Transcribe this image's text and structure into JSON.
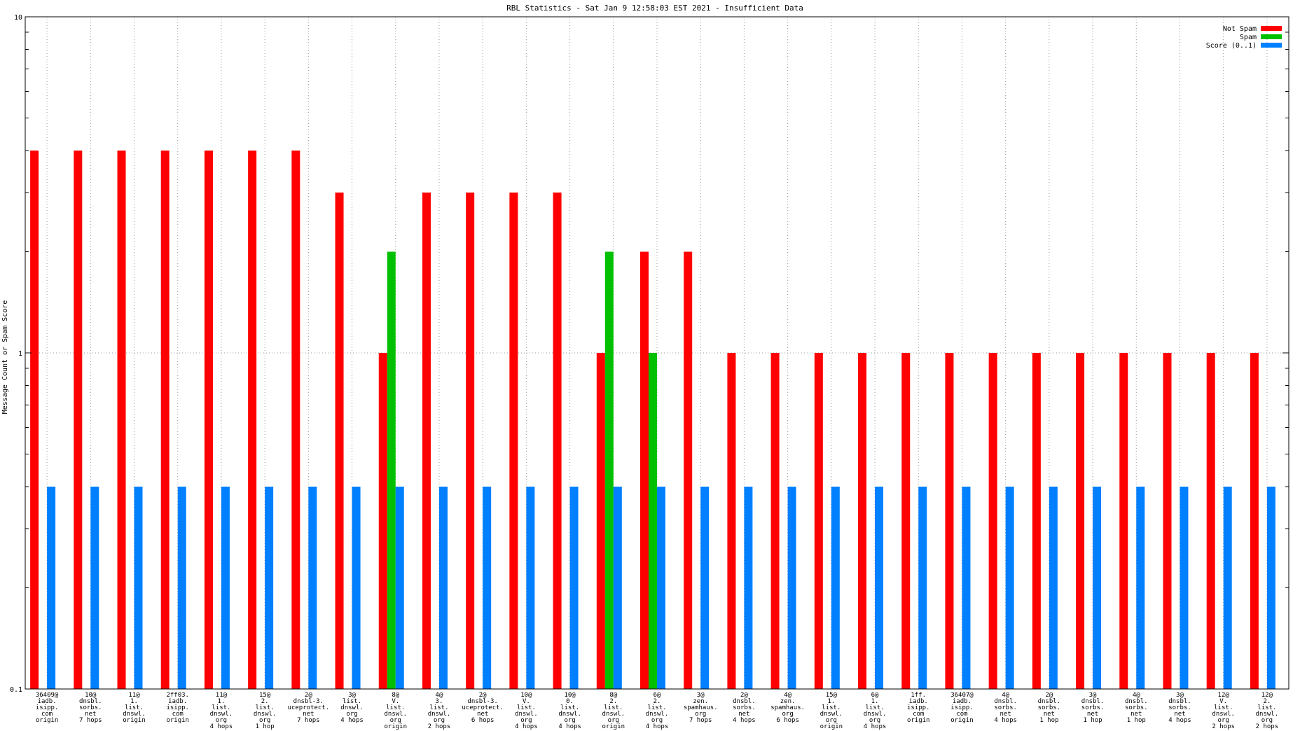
{
  "chart_data": {
    "type": "bar",
    "title": "RBL Statistics - Sat Jan  9 12:58:03 EST 2021 - Insufficient Data",
    "xlabel": "",
    "ylabel": "Message Count or Spam Score",
    "y_scale": "log",
    "ylim": [
      0.1,
      10
    ],
    "y_ticks": [
      "0.1",
      "1",
      "10"
    ],
    "grid": true,
    "legend_position": "top-right",
    "categories": [
      [
        "36409@",
        "iadb.",
        "isipp.",
        "com",
        "origin"
      ],
      [
        "10@",
        "dnsbl.",
        "sorbs.",
        "net",
        "7 hops"
      ],
      [
        "11@",
        "1.",
        "list.",
        "dnswl.",
        "origin"
      ],
      [
        "2ff03.",
        "iadb.",
        "isipp.",
        "com",
        "origin"
      ],
      [
        "11@",
        "1.",
        "list.",
        "dnswl.",
        "org",
        "4 hops"
      ],
      [
        "15@",
        "2.",
        "list.",
        "dnswl.",
        "org",
        "1 hop"
      ],
      [
        "2@",
        "dnsbl-3.",
        "uceprotect.",
        "net",
        "7 hops"
      ],
      [
        "3@",
        "list.",
        "dnswl.",
        "org",
        "4 hops"
      ],
      [
        "8@",
        "V.",
        "list.",
        "dnswl.",
        "org",
        "origin"
      ],
      [
        "4@",
        "3.",
        "list.",
        "dnswl.",
        "org",
        "2 hops"
      ],
      [
        "2@",
        "dnsbl-3.",
        "uceprotect.",
        "net",
        "6 hops"
      ],
      [
        "10@",
        "V.",
        "list.",
        "dnswl.",
        "org",
        "4 hops"
      ],
      [
        "10@",
        "0.",
        "list.",
        "dnswl.",
        "org",
        "4 hops"
      ],
      [
        "8@",
        "2.",
        "list.",
        "dnswl.",
        "org",
        "origin"
      ],
      [
        "6@",
        "2.",
        "list.",
        "dnswl.",
        "org",
        "4 hops"
      ],
      [
        "3@",
        "zen.",
        "spamhaus.",
        "org",
        "7 hops"
      ],
      [
        "2@",
        "dnsbl.",
        "sorbs.",
        "net",
        "4 hops"
      ],
      [
        "4@",
        "zen.",
        "spamhaus.",
        "org",
        "6 hops"
      ],
      [
        "15@",
        "1.",
        "list.",
        "dnswl.",
        "org",
        "origin"
      ],
      [
        "6@",
        "1.",
        "list.",
        "dnswl.",
        "org",
        "4 hops"
      ],
      [
        "1ff.",
        "iadb.",
        "isipp.",
        "com",
        "origin"
      ],
      [
        "36407@",
        "iadb.",
        "isipp.",
        "com",
        "origin"
      ],
      [
        "4@",
        "dnsbl.",
        "sorbs.",
        "net",
        "4 hops"
      ],
      [
        "2@",
        "dnsbl.",
        "sorbs.",
        "net",
        "1 hop"
      ],
      [
        "3@",
        "dnsbl.",
        "sorbs.",
        "net",
        "1 hop"
      ],
      [
        "4@",
        "dnsbl.",
        "sorbs.",
        "net",
        "1 hop"
      ],
      [
        "3@",
        "dnsbl.",
        "sorbs.",
        "net",
        "4 hops"
      ],
      [
        "12@",
        "V.",
        "list.",
        "dnswl.",
        "org",
        "2 hops"
      ],
      [
        "12@",
        "2.",
        "list.",
        "dnswl.",
        "org",
        "2 hops"
      ]
    ],
    "series": [
      {
        "name": "Not Spam",
        "color": "#ff0000",
        "values": [
          4,
          4,
          4,
          4,
          4,
          4,
          4,
          3,
          1,
          3,
          3,
          3,
          3,
          1,
          2,
          2,
          1,
          1,
          1,
          1,
          1,
          1,
          1,
          1,
          1,
          1,
          1,
          1,
          1
        ]
      },
      {
        "name": "Spam",
        "color": "#00c000",
        "values": [
          0,
          0,
          0,
          0,
          0,
          0,
          0,
          0,
          2,
          0,
          0,
          0,
          0,
          2,
          1,
          0,
          0,
          0,
          0,
          0,
          0,
          0,
          0,
          0,
          0,
          0,
          0,
          0,
          0
        ]
      },
      {
        "name": "Score (0..1)",
        "color": "#0080ff",
        "values": [
          0.4,
          0.4,
          0.4,
          0.4,
          0.4,
          0.4,
          0.4,
          0.4,
          0.4,
          0.4,
          0.4,
          0.4,
          0.4,
          0.4,
          0.4,
          0.4,
          0.4,
          0.4,
          0.4,
          0.4,
          0.4,
          0.4,
          0.4,
          0.4,
          0.4,
          0.4,
          0.4,
          0.4,
          0.4
        ]
      }
    ]
  }
}
